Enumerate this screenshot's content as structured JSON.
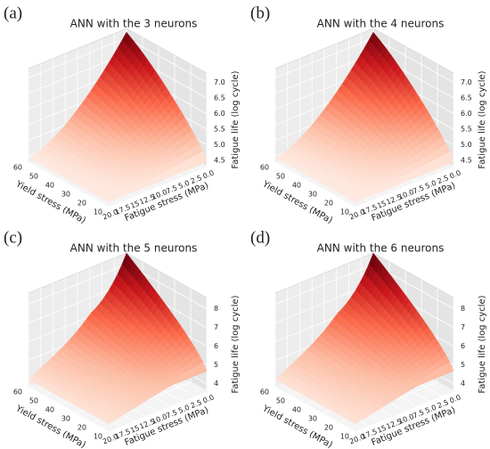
{
  "chart_data": [
    {
      "type": "surface3d",
      "panel_label": "(a)",
      "title": "ANN with the 3 neurons",
      "xlabel": "Fatigue stress (MPa)",
      "ylabel": "Yield stress (MPa)",
      "zlabel": "Fatigue life (log cycle)",
      "xlim": [
        0,
        20
      ],
      "ylim": [
        10,
        60
      ],
      "zlim": [
        4.3,
        7.3
      ],
      "xticks": [
        {
          "value": 20,
          "label": "20.0"
        },
        17.5,
        15,
        12.5,
        {
          "value": 10,
          "label": "10.0"
        },
        7.5,
        {
          "value": 5,
          "label": "5.0"
        },
        2.5,
        {
          "value": 0,
          "label": "0.0"
        }
      ],
      "yticks": [
        10,
        20,
        30,
        40,
        50,
        60
      ],
      "zticks": [
        4.5,
        {
          "value": 5,
          "label": "5.0"
        },
        5.5,
        {
          "value": 6,
          "label": "6.0"
        },
        6.5,
        {
          "value": 7,
          "label": "7.0"
        }
      ],
      "colormap": [
        "#fff5f0",
        "#fcbba1",
        "#fb6a4a",
        "#cb181d",
        "#67000d"
      ]
    },
    {
      "type": "surface3d",
      "panel_label": "(b)",
      "title": "ANN with the 4 neurons",
      "xlabel": "Fatigue stress (MPa)",
      "ylabel": "Yield stress (MPa)",
      "zlabel": "Fatigue life (log cycle)",
      "xlim": [
        0,
        20
      ],
      "ylim": [
        10,
        60
      ],
      "zlim": [
        4.3,
        7.3
      ],
      "xticks": [
        {
          "value": 20,
          "label": "20.0"
        },
        17.5,
        15,
        12.5,
        {
          "value": 10,
          "label": "10.0"
        },
        7.5,
        {
          "value": 5,
          "label": "5.0"
        },
        2.5,
        {
          "value": 0,
          "label": "0.0"
        }
      ],
      "yticks": [
        10,
        20,
        30,
        40,
        50,
        60
      ],
      "zticks": [
        4.5,
        {
          "value": 5,
          "label": "5.0"
        },
        5.5,
        {
          "value": 6,
          "label": "6.0"
        },
        6.5,
        {
          "value": 7,
          "label": "7.0"
        }
      ],
      "colormap": [
        "#fff5f0",
        "#fcbba1",
        "#fb6a4a",
        "#cb181d",
        "#67000d"
      ]
    },
    {
      "type": "surface3d",
      "panel_label": "(c)",
      "title": "ANN with the 5 neurons",
      "xlabel": "Fatigue stress (MPa)",
      "ylabel": "Yield stress (MPa)",
      "zlabel": "Fatigue life (log cycle)",
      "xlim": [
        0,
        20
      ],
      "ylim": [
        10,
        60
      ],
      "zlim": [
        3.6,
        8.6
      ],
      "xticks": [
        {
          "value": 20,
          "label": "20.0"
        },
        17.5,
        15,
        12.5,
        {
          "value": 10,
          "label": "10.0"
        },
        7.5,
        {
          "value": 5,
          "label": "5.0"
        },
        2.5,
        {
          "value": 0,
          "label": "0.0"
        }
      ],
      "yticks": [
        10,
        20,
        30,
        40,
        50,
        60
      ],
      "zticks": [
        4,
        5,
        6,
        7,
        8
      ],
      "colormap": [
        "#fff5f0",
        "#fcbba1",
        "#fb6a4a",
        "#cb181d",
        "#67000d"
      ]
    },
    {
      "type": "surface3d",
      "panel_label": "(d)",
      "title": "ANN with the 6 neurons",
      "xlabel": "Fatigue stress (MPa)",
      "ylabel": "Yield stress (MPa)",
      "zlabel": "Fatigue life (log cycle)",
      "xlim": [
        0,
        20
      ],
      "ylim": [
        10,
        60
      ],
      "zlim": [
        3.6,
        8.6
      ],
      "xticks": [
        {
          "value": 20,
          "label": "20.0"
        },
        17.5,
        15,
        12.5,
        {
          "value": 10,
          "label": "10.0"
        },
        7.5,
        {
          "value": 5,
          "label": "5.0"
        },
        2.5,
        {
          "value": 0,
          "label": "0.0"
        }
      ],
      "yticks": [
        10,
        20,
        30,
        40,
        50,
        60
      ],
      "zticks": [
        4,
        5,
        6,
        7,
        8
      ],
      "colormap": [
        "#fff5f0",
        "#fcbba1",
        "#fb6a4a",
        "#cb181d",
        "#67000d"
      ]
    }
  ]
}
